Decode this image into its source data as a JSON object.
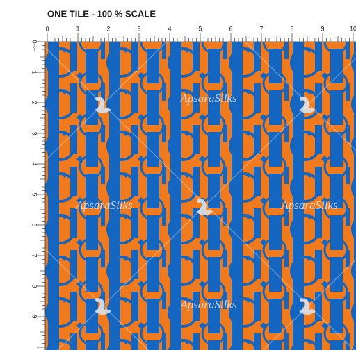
{
  "header": {
    "title": "ONE TILE - 100 % SCALE"
  },
  "ruler": {
    "unit": "INCH",
    "top_labels": [
      0,
      1,
      2,
      3,
      4,
      5,
      6,
      7,
      8,
      9,
      10
    ],
    "left_labels": [
      0,
      1,
      2,
      3,
      4,
      5,
      6,
      7,
      8,
      9
    ]
  },
  "watermark": "ApsaraSilks"
}
